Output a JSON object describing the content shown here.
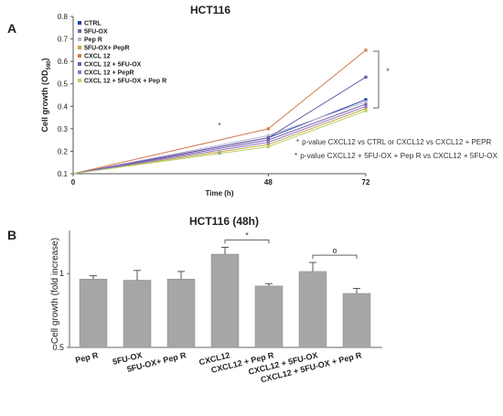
{
  "panels": {
    "a": "A",
    "b": "B"
  },
  "chart_data": [
    {
      "type": "line",
      "title": "HCT116",
      "xlabel": "Time (h)",
      "ylabel_main": "Cell growth  (OD",
      "ylabel_sub": "590",
      "ylabel_close": ")",
      "x": [
        0,
        48,
        72
      ],
      "x_ticks": [
        "0",
        "48",
        "72"
      ],
      "xlim": [
        0,
        72
      ],
      "ylim": [
        0.1,
        0.8
      ],
      "y_ticks": [
        "0.1",
        "0.2",
        "0.3",
        "0.4",
        "0.5",
        "0.6",
        "0.7",
        "0.8"
      ],
      "legend_position": "top-left",
      "series": [
        {
          "name": "CTRL",
          "values": [
            0.1,
            0.26,
            0.43
          ],
          "color": "#1f3fa8"
        },
        {
          "name": "5FU-OX",
          "values": [
            0.1,
            0.25,
            0.41
          ],
          "color": "#7a5fa6"
        },
        {
          "name": "Pep R",
          "values": [
            0.1,
            0.27,
            0.42
          ],
          "color": "#b9b5cf"
        },
        {
          "name": "5FU-OX+ PepR",
          "values": [
            0.1,
            0.23,
            0.39
          ],
          "color": "#c9a23a"
        },
        {
          "name": "CXCL 12",
          "values": [
            0.1,
            0.3,
            0.65
          ],
          "color": "#d2794f"
        },
        {
          "name": "CXCL 12 + 5FU-OX",
          "values": [
            0.1,
            0.26,
            0.53
          ],
          "color": "#6a58a8"
        },
        {
          "name": "CXCL 12 + PepR",
          "values": [
            0.1,
            0.24,
            0.4
          ],
          "color": "#8a78c9"
        },
        {
          "name": "CXCL 12 + 5FU-OX + Pep R",
          "values": [
            0.1,
            0.22,
            0.38
          ],
          "color": "#b6d36a"
        }
      ],
      "annotations": {
        "bracket_mark": "*",
        "marker_48_star": "*",
        "marker_48_circle": "o",
        "note_1_mark": "*",
        "note_1": "p-value CXCL12 vs CTRL or CXCL12 vs CXCL12 + PEPR",
        "note_2_mark": "*",
        "note_2": "p-value CXCL12 + 5FU-OX + Pep R vs CXCL12 + 5FU-OX"
      }
    },
    {
      "type": "bar",
      "title": "HCT116  (48h)",
      "ylabel": "Cell growth (fold increase)",
      "ylim": [
        0.5,
        1.5
      ],
      "y_ticks": [
        "0.5",
        "1"
      ],
      "y_scale": "log",
      "bar_color": "#a6a6a6",
      "categories": [
        "Pep R",
        "5FU-OX",
        "5FU-OX+ Pep R",
        "CXCL12",
        "CXCL12 + Pep R",
        "CXCL12 + 5FU-OX",
        "CXCL12 + 5FU-OX + Pep R"
      ],
      "values": [
        0.95,
        0.94,
        0.95,
        1.2,
        0.89,
        1.02,
        0.83
      ],
      "errors": [
        0.03,
        0.09,
        0.07,
        0.08,
        0.02,
        0.09,
        0.04
      ],
      "significance": [
        {
          "from": 3,
          "to": 4,
          "mark": "*"
        },
        {
          "from": 5,
          "to": 6,
          "mark": "o"
        }
      ]
    }
  ]
}
